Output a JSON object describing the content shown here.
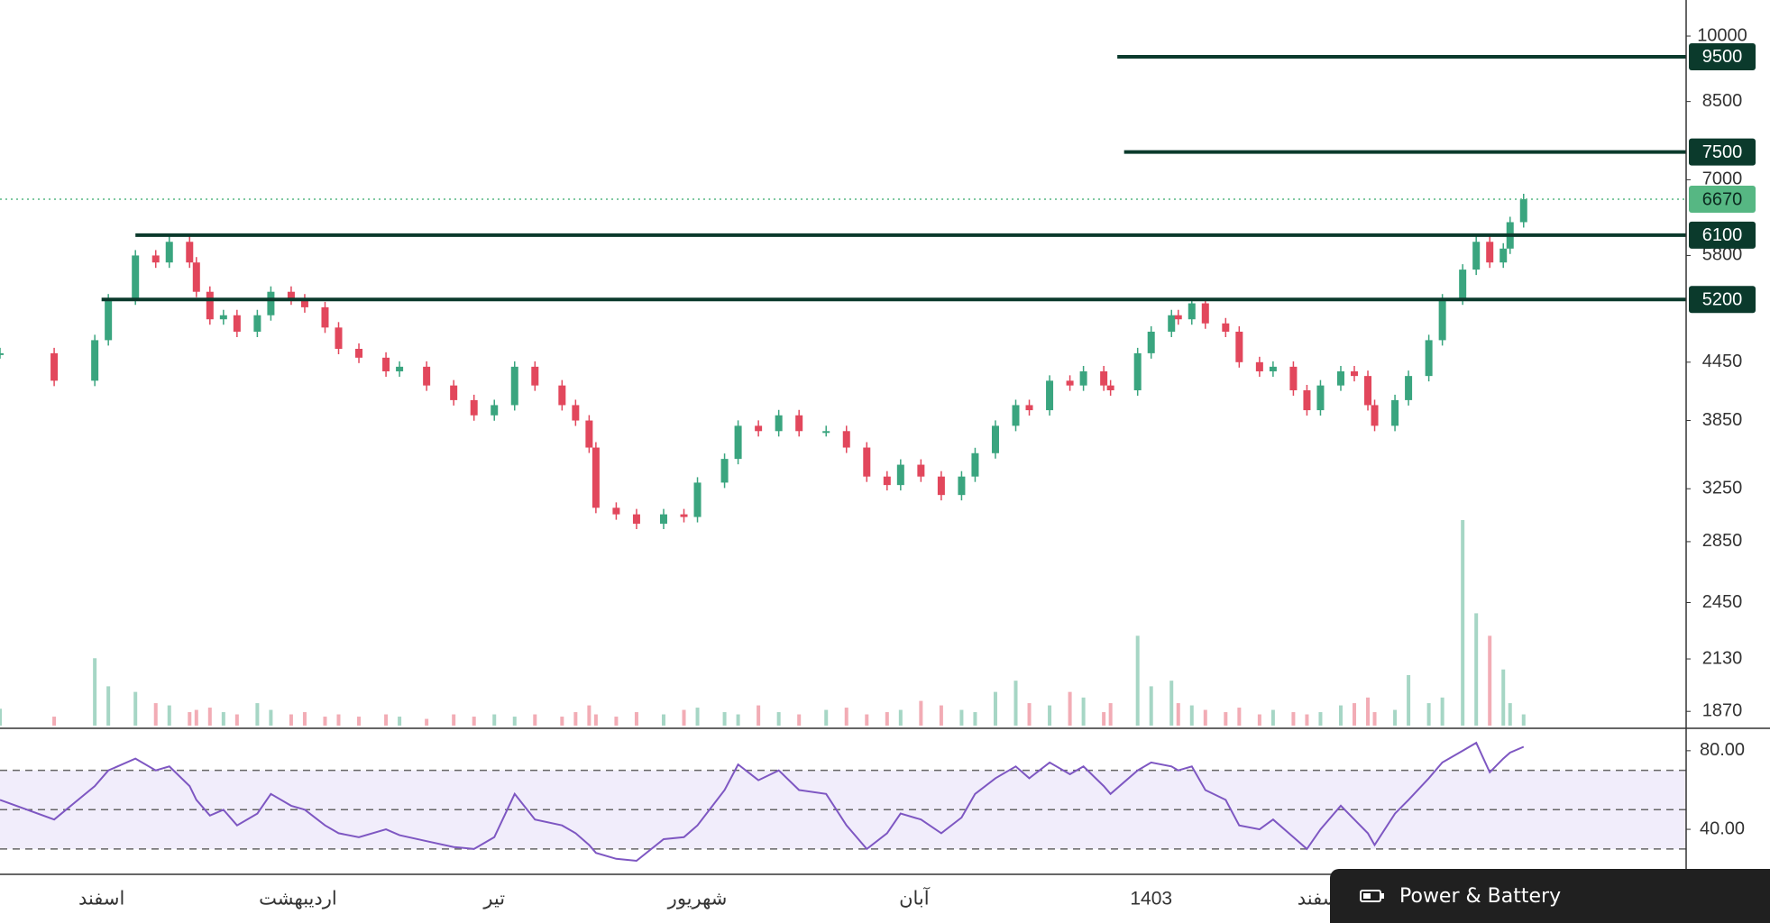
{
  "chart_data": {
    "type": "candlestick",
    "log_scale": true,
    "x": [
      0,
      8,
      14,
      16,
      20,
      23,
      25,
      28,
      29,
      31,
      33,
      35,
      38,
      40,
      43,
      45,
      48,
      50,
      53,
      57,
      59,
      63,
      67,
      70,
      73,
      76,
      79,
      83,
      85,
      87,
      88,
      91,
      94,
      98,
      101,
      103,
      107,
      109,
      112,
      115,
      118,
      122,
      125,
      128,
      131,
      133,
      136,
      139,
      142,
      144,
      147,
      150,
      152,
      155,
      158,
      160,
      163,
      164,
      168,
      170,
      173,
      174,
      176,
      178,
      181,
      183,
      186,
      188,
      191,
      193,
      195,
      198,
      200,
      202,
      203,
      206,
      208,
      211,
      213,
      216,
      218,
      220,
      222,
      223,
      225
    ],
    "close": [
      4550,
      4250,
      4700,
      5200,
      5800,
      5700,
      6000,
      5700,
      5300,
      4950,
      5000,
      4800,
      5000,
      5300,
      5200,
      5100,
      4850,
      4600,
      4500,
      4350,
      4400,
      4200,
      4050,
      3900,
      4000,
      4400,
      4200,
      4000,
      3850,
      3600,
      3100,
      3050,
      2980,
      3050,
      3030,
      3300,
      3500,
      3800,
      3750,
      3900,
      3750,
      3750,
      3600,
      3350,
      3280,
      3450,
      3350,
      3200,
      3350,
      3550,
      3800,
      4000,
      3950,
      4250,
      4200,
      4350,
      4200,
      4150,
      4550,
      4800,
      5000,
      4950,
      5150,
      4900,
      4800,
      4450,
      4350,
      4400,
      4150,
      3950,
      4200,
      4350,
      4300,
      4000,
      3800,
      4050,
      4300,
      4700,
      5200,
      5600,
      6000,
      5700,
      5900,
      6300,
      6670
    ],
    "volume": [
      15,
      8,
      60,
      35,
      30,
      20,
      18,
      12,
      14,
      16,
      12,
      10,
      20,
      14,
      10,
      12,
      8,
      10,
      8,
      10,
      8,
      6,
      10,
      8,
      10,
      8,
      10,
      8,
      12,
      18,
      10,
      8,
      12,
      10,
      14,
      16,
      12,
      10,
      18,
      12,
      10,
      14,
      16,
      10,
      12,
      14,
      22,
      18,
      14,
      12,
      30,
      40,
      20,
      18,
      30,
      25,
      12,
      20,
      80,
      35,
      40,
      20,
      18,
      14,
      12,
      16,
      10,
      14,
      12,
      10,
      12,
      18,
      20,
      25,
      12,
      14,
      45,
      20,
      25,
      183,
      100,
      80,
      50,
      20,
      10
    ],
    "up_color": "#3aa57f",
    "down_color": "#e2475c",
    "xlim": [
      0,
      249
    ],
    "ylim": [
      1793,
      10937
    ],
    "yticks": [
      10000,
      8500,
      7000,
      5800,
      4450,
      3850,
      3250,
      2850,
      2450,
      2130,
      1870
    ],
    "levels": [
      {
        "value": 9500,
        "start": 165
      },
      {
        "value": 7500,
        "start": 166
      },
      {
        "value": 6100,
        "start": 20
      },
      {
        "value": 5200,
        "start": 15
      }
    ],
    "level_color": "#0b3a2c",
    "last_price": 6670,
    "last_price_color": "#56b783",
    "xticks": [
      {
        "value": 15,
        "label": "اسفند"
      },
      {
        "value": 44,
        "label": "اردیبهشت"
      },
      {
        "value": 73,
        "label": "تیر"
      },
      {
        "value": 103,
        "label": "شهریور"
      },
      {
        "value": 135,
        "label": "آبان"
      },
      {
        "value": 170,
        "label": "1403"
      },
      {
        "value": 195,
        "label": "اسفند"
      }
    ],
    "rsi": {
      "values": [
        55,
        45,
        62,
        70,
        76,
        70,
        72,
        62,
        55,
        47,
        50,
        42,
        48,
        58,
        52,
        50,
        42,
        38,
        36,
        40,
        37,
        34,
        31,
        30,
        36,
        58,
        45,
        42,
        38,
        32,
        28,
        25,
        24,
        35,
        36,
        42,
        60,
        73,
        65,
        70,
        60,
        58,
        42,
        30,
        38,
        48,
        45,
        38,
        46,
        58,
        66,
        72,
        66,
        74,
        68,
        72,
        62,
        58,
        70,
        74,
        72,
        70,
        72,
        60,
        55,
        42,
        40,
        45,
        36,
        30,
        40,
        52,
        45,
        38,
        32,
        48,
        55,
        66,
        74,
        80,
        84,
        69,
        76,
        79,
        82
      ],
      "color": "#7e57c2",
      "ylim": [
        17.1,
        91.4
      ],
      "yticks": [
        {
          "value": 80,
          "label": "80.00"
        },
        {
          "value": 40,
          "label": "40.00"
        }
      ],
      "levels": [
        30,
        50,
        70
      ],
      "band_color": "#f1edfb"
    }
  },
  "overlay": {
    "popup_title": "Power & Battery"
  }
}
